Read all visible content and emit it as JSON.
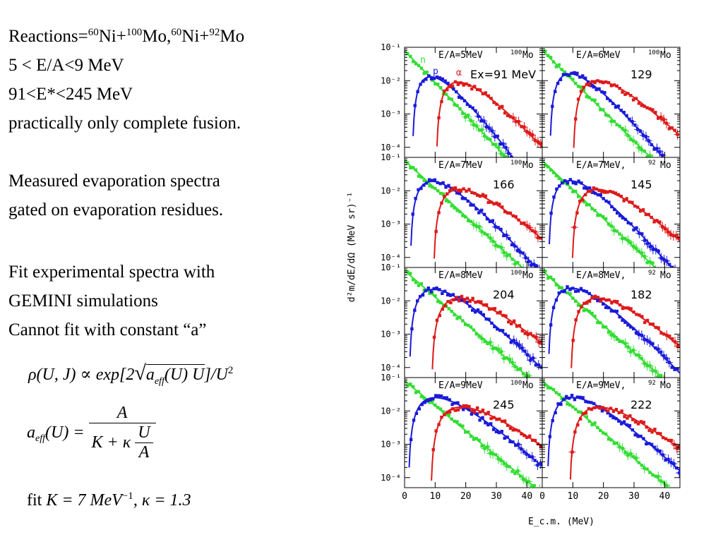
{
  "text": {
    "line1_pre": "Reactions=",
    "line1_sup1": "60",
    "line1_a": "Ni+",
    "line1_sup2": "100",
    "line1_b": "Mo,",
    "line1_sup3": "60",
    "line1_c": "Ni+",
    "line1_sup4": "92",
    "line1_d": "Mo",
    "line2": "5 < E/A<9 MeV",
    "line3": "91<E*<245 MeV",
    "line4": "practically only complete fusion.",
    "line5": "Measured evaporation spectra",
    "line6": "gated on evaporation residues.",
    "line7": "Fit experimental spectra with",
    "line8": "GEMINI simulations",
    "line9": "Cannot fit with constant “a”"
  },
  "formulas": {
    "rho_lhs": "ρ(U, J) ∝ exp[2",
    "rho_sqrt": "a",
    "rho_sqrt_sub": "eff",
    "rho_sqrt_rest": "(U) U",
    "rho_rhs": "]/U",
    "rho_exp": "2",
    "aeff_lhs_a": "a",
    "aeff_lhs_sub": "eff",
    "aeff_lhs_rest": "(U) =",
    "aeff_num": "A",
    "aeff_den_a": "K + κ",
    "aeff_den_num": "U",
    "aeff_den_den": "A",
    "fit_pre": "fit",
    "fit_k": "K = 7 MeV",
    "fit_exp": "−1",
    "fit_rest": ", κ = 1.3"
  },
  "colors": {
    "neutron": "#33dd33",
    "proton": "#1a1ad9",
    "alpha": "#dd1a1a",
    "axis": "#000000"
  },
  "chart_data": {
    "type": "scatter",
    "xlabel": "E_c.m. (MeV)",
    "ylabel": "d²m/dE/dΩ (MeV sr)⁻¹",
    "xlim": [
      0,
      45
    ],
    "ylim": [
      5e-05,
      0.1
    ],
    "y_log": true,
    "x_ticks": [
      "0",
      "10",
      "20",
      "30",
      "40"
    ],
    "y_ticks": [
      "10⁻¹",
      "10⁻²",
      "10⁻³",
      "10⁻⁴"
    ],
    "particle_labels": [
      "n",
      "p",
      "α"
    ],
    "panels": [
      {
        "title": "E/A=5MeV",
        "target_sup": "100",
        "target": "Mo",
        "ex": "Ex=91 MeV",
        "show_particles": true,
        "n": {
          "A": 0.08,
          "T": 4.5
        },
        "p": {
          "peak": 8.5,
          "max": 0.013,
          "T": 3.0
        },
        "a": {
          "peak": 17.5,
          "max": 0.009,
          "T": 3.6
        }
      },
      {
        "title": "E/A=6MeV",
        "target_sup": "100",
        "target": "Mo",
        "ex": "129",
        "n": {
          "A": 0.08,
          "T": 4.8
        },
        "p": {
          "peak": 9,
          "max": 0.016,
          "T": 3.3
        },
        "a": {
          "peak": 18,
          "max": 0.01,
          "T": 4.0
        }
      },
      {
        "title": "E/A=7MeV",
        "target_sup": "100",
        "target": "Mo",
        "ex": "166",
        "n": {
          "A": 0.08,
          "T": 5.2
        },
        "p": {
          "peak": 9,
          "max": 0.019,
          "T": 3.6
        },
        "a": {
          "peak": 18,
          "max": 0.011,
          "T": 4.3
        }
      },
      {
        "title": "E/A=7MeV,",
        "target_sup": "92",
        "target": "Mo",
        "ex": "145",
        "n": {
          "A": 0.08,
          "T": 5.0
        },
        "p": {
          "peak": 9,
          "max": 0.02,
          "T": 3.5
        },
        "a": {
          "peak": 18,
          "max": 0.011,
          "T": 4.2
        }
      },
      {
        "title": "E/A=8MeV",
        "target_sup": "100",
        "target": "Mo",
        "ex": "204",
        "n": {
          "A": 0.08,
          "T": 5.5
        },
        "p": {
          "peak": 9.5,
          "max": 0.022,
          "T": 4.0
        },
        "a": {
          "peak": 18,
          "max": 0.012,
          "T": 4.6
        }
      },
      {
        "title": "E/A=8MeV,",
        "target_sup": "92",
        "target": "Mo",
        "ex": "182",
        "n": {
          "A": 0.08,
          "T": 5.3
        },
        "p": {
          "peak": 9.5,
          "max": 0.024,
          "T": 3.8
        },
        "a": {
          "peak": 18,
          "max": 0.012,
          "T": 4.4
        }
      },
      {
        "title": "E/A=9MeV",
        "target_sup": "100",
        "target": "Mo",
        "ex": "245",
        "n": {
          "A": 0.08,
          "T": 5.8
        },
        "p": {
          "peak": 10,
          "max": 0.025,
          "T": 4.4
        },
        "a": {
          "peak": 18.5,
          "max": 0.013,
          "T": 5.0
        }
      },
      {
        "title": "E/A=9MeV,",
        "target_sup": "92",
        "target": "Mo",
        "ex": "222",
        "n": {
          "A": 0.08,
          "T": 5.6
        },
        "p": {
          "peak": 10,
          "max": 0.025,
          "T": 4.2
        },
        "a": {
          "peak": 18.5,
          "max": 0.013,
          "T": 4.8
        }
      }
    ]
  }
}
